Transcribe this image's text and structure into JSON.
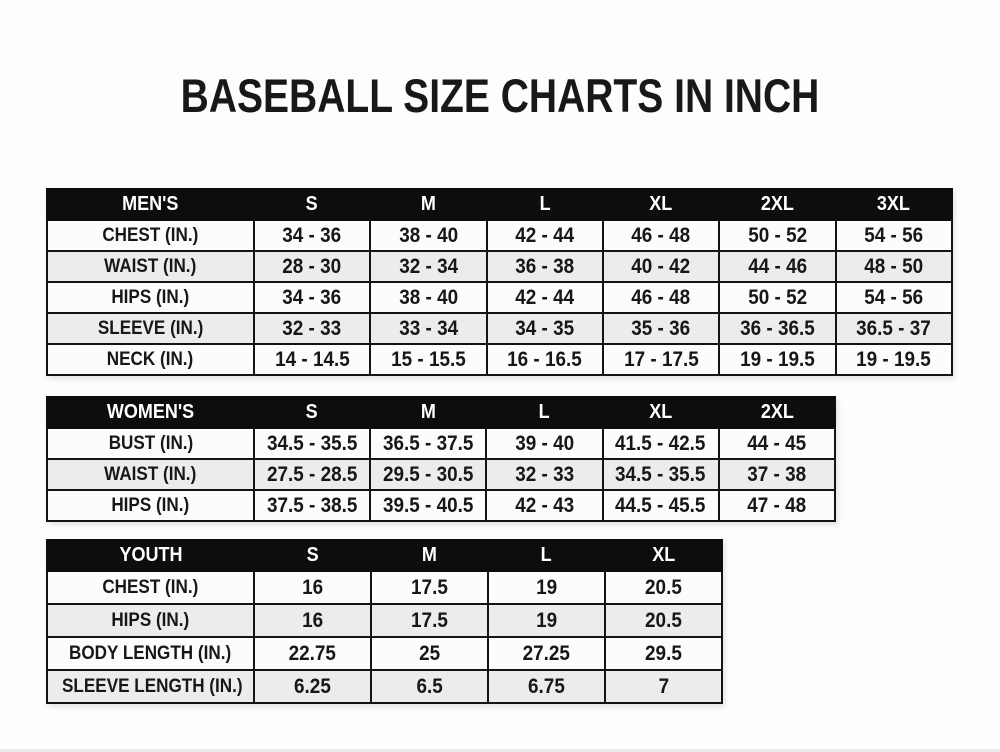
{
  "page": {
    "title": "BASEBALL SIZE CHARTS IN INCH"
  },
  "colors": {
    "header_bg": "#0d0d0d",
    "header_text": "#ffffff",
    "row_white": "#fcfcfc",
    "row_gray": "#ececec",
    "border": "#141414",
    "text": "#171717",
    "page_bg": "#fdfdfd"
  },
  "tables": [
    {
      "id": "mens",
      "section_label": "MEN'S",
      "header": [
        "MEN'S",
        "S",
        "M",
        "L",
        "XL",
        "2XL",
        "3XL"
      ],
      "rows": [
        {
          "label": "CHEST (IN.)",
          "values": [
            "34 - 36",
            "38 - 40",
            "42 - 44",
            "46 - 48",
            "50 - 52",
            "54 - 56"
          ]
        },
        {
          "label": "WAIST (IN.)",
          "values": [
            "28 - 30",
            "32 - 34",
            "36 - 38",
            "40 - 42",
            "44 - 46",
            "48 - 50"
          ]
        },
        {
          "label": "HIPS (IN.)",
          "values": [
            "34 - 36",
            "38 - 40",
            "42 - 44",
            "46 - 48",
            "50 - 52",
            "54 - 56"
          ]
        },
        {
          "label": "SLEEVE (IN.)",
          "values": [
            "32 - 33",
            "33 - 34",
            "34 - 35",
            "35 - 36",
            "36 - 36.5",
            "36.5 - 37"
          ]
        },
        {
          "label": "NECK (IN.)",
          "values": [
            "14 - 14.5",
            "15 - 15.5",
            "16 - 16.5",
            "17 - 17.5",
            "19 - 19.5",
            "19 - 19.5"
          ]
        }
      ]
    },
    {
      "id": "womens",
      "section_label": "WOMEN'S",
      "header": [
        "WOMEN'S",
        "S",
        "M",
        "L",
        "XL",
        "2XL"
      ],
      "rows": [
        {
          "label": "BUST (IN.)",
          "values": [
            "34.5 - 35.5",
            "36.5 - 37.5",
            "39 - 40",
            "41.5 - 42.5",
            "44 - 45"
          ]
        },
        {
          "label": "WAIST (IN.)",
          "values": [
            "27.5 - 28.5",
            "29.5 - 30.5",
            "32 - 33",
            "34.5 - 35.5",
            "37 - 38"
          ]
        },
        {
          "label": "HIPS (IN.)",
          "values": [
            "37.5 - 38.5",
            "39.5 - 40.5",
            "42 - 43",
            "44.5 - 45.5",
            "47 - 48"
          ]
        }
      ]
    },
    {
      "id": "youth",
      "section_label": "YOUTH",
      "header": [
        "YOUTH",
        "S",
        "M",
        "L",
        "XL"
      ],
      "rows": [
        {
          "label": "CHEST (IN.)",
          "values": [
            "16",
            "17.5",
            "19",
            "20.5"
          ]
        },
        {
          "label": "HIPS (IN.)",
          "values": [
            "16",
            "17.5",
            "19",
            "20.5"
          ]
        },
        {
          "label": "BODY LENGTH (IN.)",
          "values": [
            "22.75",
            "25",
            "27.25",
            "29.5"
          ]
        },
        {
          "label": "SLEEVE LENGTH (IN.)",
          "values": [
            "6.25",
            "6.5",
            "6.75",
            "7"
          ]
        }
      ]
    }
  ]
}
